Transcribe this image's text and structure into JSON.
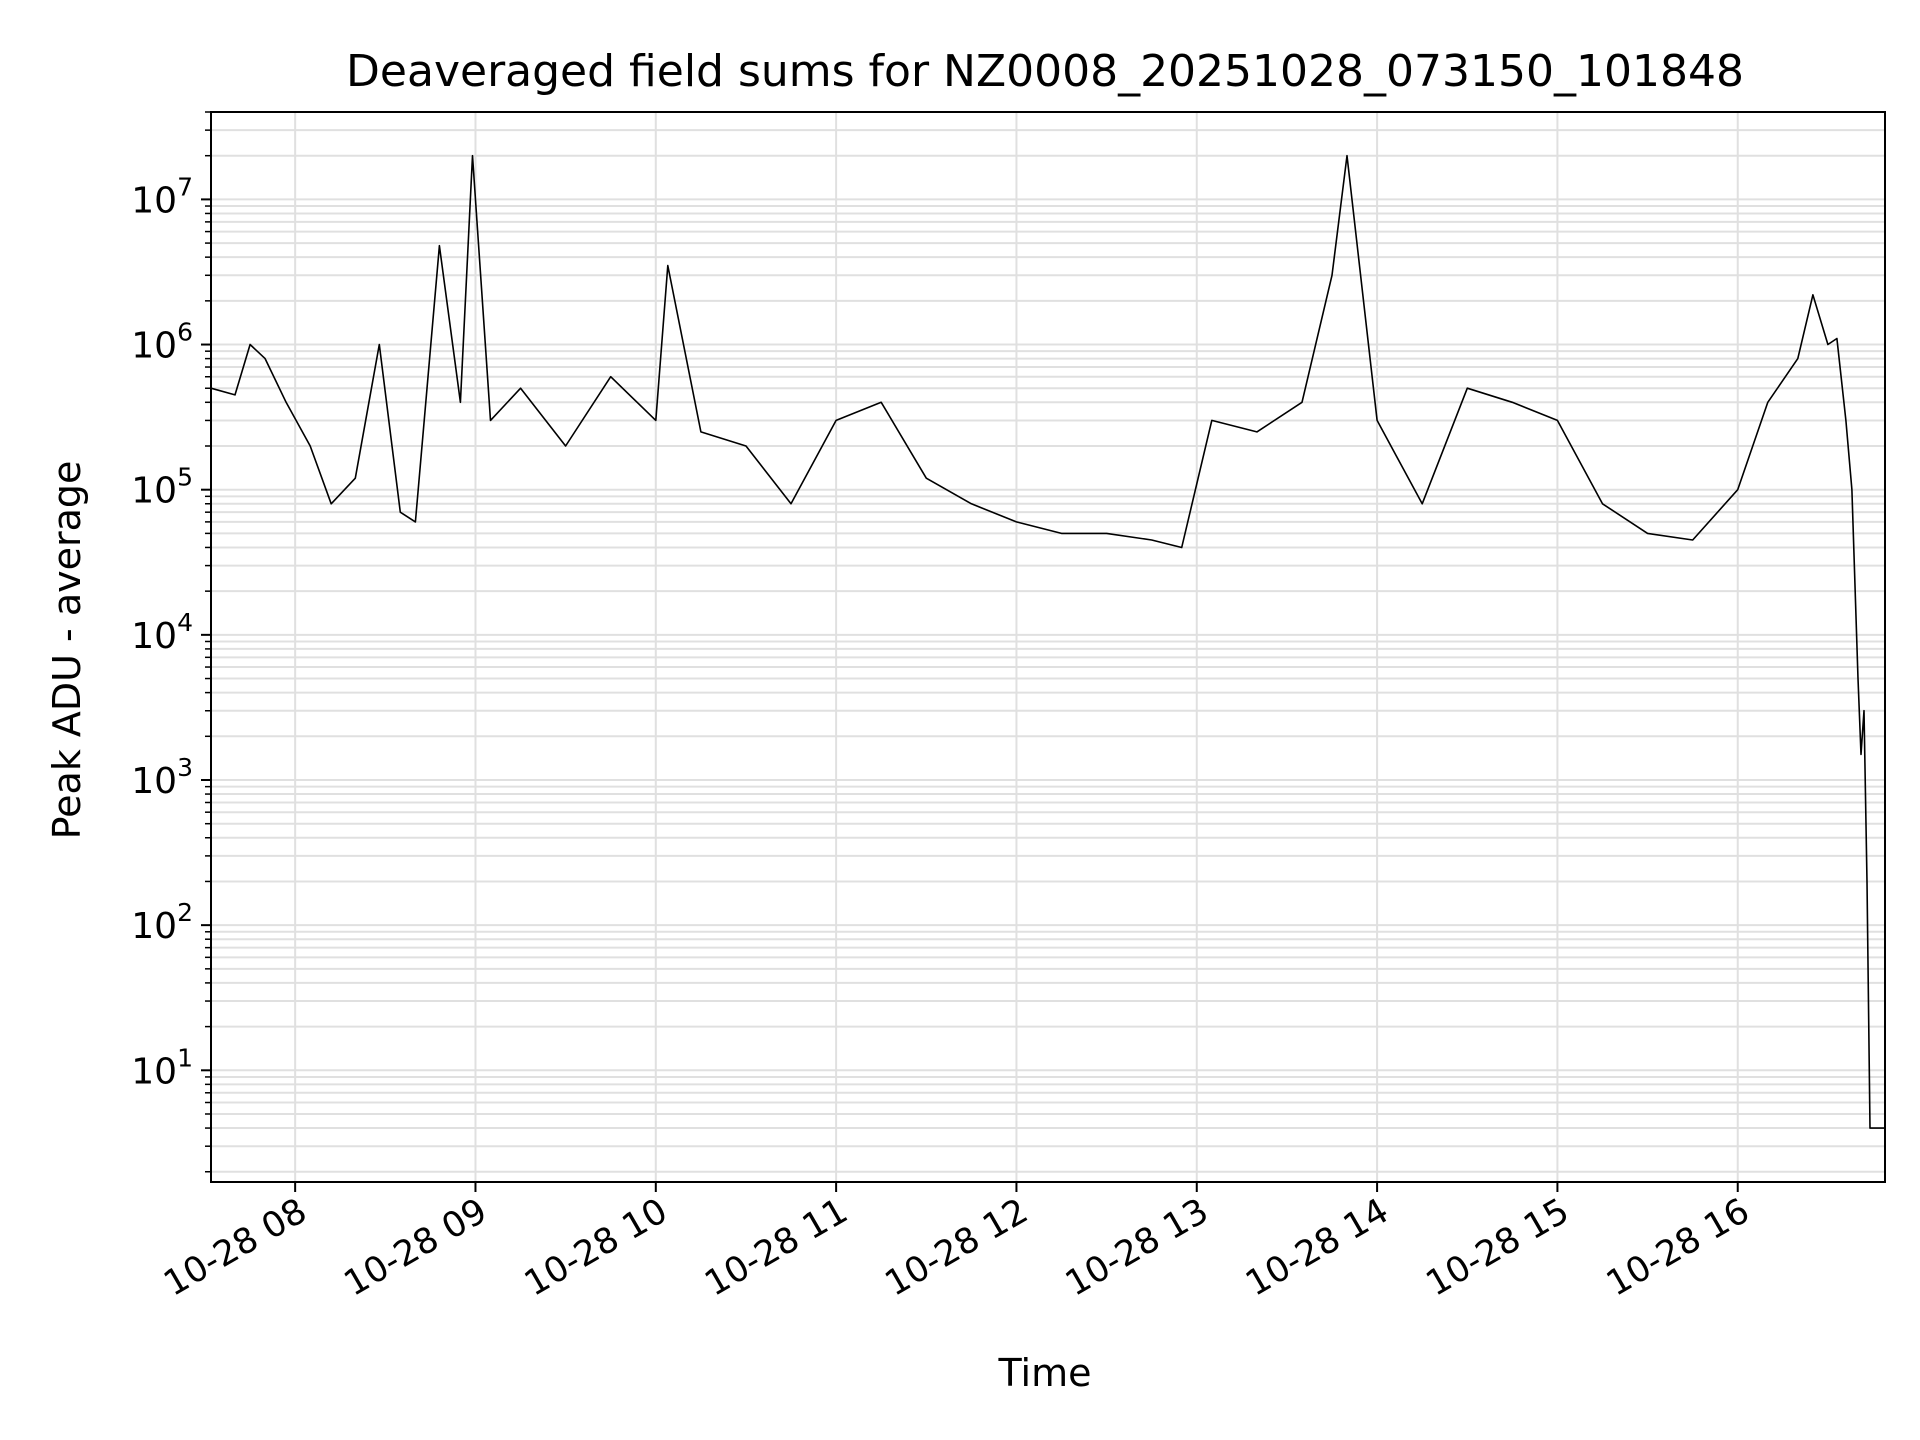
{
  "chart_data": {
    "type": "line",
    "title": "Deaveraged field sums for NZ0008_20251028_073150_101848",
    "xlabel": "Time",
    "ylabel": "Peak ADU - average",
    "yscale": "log",
    "ylim": [
      1.7,
      40000000
    ],
    "xlim": [
      "2025-10-28 07:32",
      "2025-10-28 16:49"
    ],
    "grid": true,
    "line_color": "#000000",
    "grid_color": "#e0e0e0",
    "x_ticks": [
      "10-28 08",
      "10-28 09",
      "10-28 10",
      "10-28 11",
      "10-28 12",
      "10-28 13",
      "10-28 14",
      "10-28 15",
      "10-28 16"
    ],
    "y_ticks": [
      {
        "base": "10",
        "exp": "1",
        "value": 10
      },
      {
        "base": "10",
        "exp": "2",
        "value": 100
      },
      {
        "base": "10",
        "exp": "3",
        "value": 1000
      },
      {
        "base": "10",
        "exp": "4",
        "value": 10000
      },
      {
        "base": "10",
        "exp": "5",
        "value": 100000
      },
      {
        "base": "10",
        "exp": "6",
        "value": 1000000
      },
      {
        "base": "10",
        "exp": "7",
        "value": 10000000
      }
    ],
    "series": [
      {
        "x": [
          "2025-10-28 07:32",
          "2025-10-28 07:40",
          "2025-10-28 07:45",
          "2025-10-28 07:50",
          "2025-10-28 07:57",
          "2025-10-28 08:05",
          "2025-10-28 08:12",
          "2025-10-28 08:20",
          "2025-10-28 08:28",
          "2025-10-28 08:35",
          "2025-10-28 08:40",
          "2025-10-28 08:48",
          "2025-10-28 08:55",
          "2025-10-28 08:59",
          "2025-10-28 09:05",
          "2025-10-28 09:15",
          "2025-10-28 09:30",
          "2025-10-28 09:45",
          "2025-10-28 10:00",
          "2025-10-28 10:04",
          "2025-10-28 10:15",
          "2025-10-28 10:30",
          "2025-10-28 10:45",
          "2025-10-28 11:00",
          "2025-10-28 11:15",
          "2025-10-28 11:30",
          "2025-10-28 11:45",
          "2025-10-28 12:00",
          "2025-10-28 12:15",
          "2025-10-28 12:30",
          "2025-10-28 12:45",
          "2025-10-28 12:55",
          "2025-10-28 13:05",
          "2025-10-28 13:20",
          "2025-10-28 13:35",
          "2025-10-28 13:45",
          "2025-10-28 13:50",
          "2025-10-28 14:00",
          "2025-10-28 14:15",
          "2025-10-28 14:30",
          "2025-10-28 14:45",
          "2025-10-28 15:00",
          "2025-10-28 15:15",
          "2025-10-28 15:30",
          "2025-10-28 15:45",
          "2025-10-28 16:00",
          "2025-10-28 16:10",
          "2025-10-28 16:20",
          "2025-10-28 16:25",
          "2025-10-28 16:30",
          "2025-10-28 16:33",
          "2025-10-28 16:36",
          "2025-10-28 16:38",
          "2025-10-28 16:40",
          "2025-10-28 16:41",
          "2025-10-28 16:42",
          "2025-10-28 16:43",
          "2025-10-28 16:44",
          "2025-10-28 16:49"
        ],
        "y": [
          500000,
          450000,
          1000000,
          800000,
          400000,
          200000,
          80000,
          120000,
          1000000,
          70000,
          60000,
          4800000,
          400000,
          20000000,
          300000,
          500000,
          200000,
          600000,
          300000,
          3500000,
          250000,
          200000,
          80000,
          300000,
          400000,
          120000,
          80000,
          60000,
          50000,
          50000,
          45000,
          40000,
          300000,
          250000,
          400000,
          3000000,
          20000000,
          300000,
          80000,
          500000,
          400000,
          300000,
          80000,
          50000,
          45000,
          100000,
          400000,
          800000,
          2200000,
          1000000,
          1100000,
          300000,
          100000,
          5000,
          1500,
          3000,
          200,
          4,
          4
        ]
      }
    ]
  }
}
